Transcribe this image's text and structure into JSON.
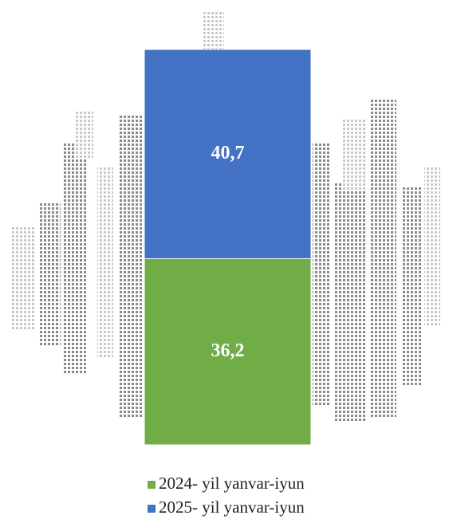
{
  "chart_data": {
    "type": "stacked-bar",
    "categories": [
      null
    ],
    "series": [
      {
        "name": "2024- yil yanvar-iyun",
        "color": "#70ad47",
        "values": [
          36.2
        ],
        "value_labels": [
          "36,2"
        ]
      },
      {
        "name": "2025- yil yanvar-iyun",
        "color": "#4472c4",
        "values": [
          40.7
        ],
        "value_labels": [
          "40,7"
        ]
      }
    ]
  }
}
